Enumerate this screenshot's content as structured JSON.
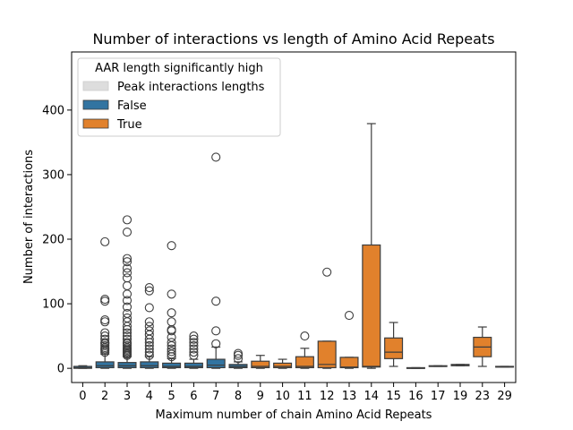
{
  "chart_data": {
    "type": "box",
    "title": "Number of interactions vs length of Amino Acid Repeats",
    "xlabel": "Maximum number of chain Amino Acid Repeats",
    "ylabel": "Number of interactions",
    "ylim": [
      -22,
      490
    ],
    "yticks": [
      0,
      100,
      200,
      300,
      400
    ],
    "legend": {
      "title": "AAR length significantly high",
      "placement": "top-left",
      "entries": [
        {
          "label": "Peak interactions lengths",
          "color": "#dddddd"
        },
        {
          "label": "False",
          "color": "#3274a1"
        },
        {
          "label": "True",
          "color": "#e1812c"
        }
      ]
    },
    "categories": [
      "0",
      "2",
      "3",
      "4",
      "5",
      "6",
      "7",
      "8",
      "9",
      "10",
      "11",
      "12",
      "13",
      "14",
      "15",
      "16",
      "17",
      "19",
      "23",
      "29"
    ],
    "boxes": [
      {
        "x": "0",
        "significant": false,
        "whisker_low": 0,
        "q1": 0,
        "median": 1,
        "q3": 3,
        "whisker_high": 4,
        "outliers": []
      },
      {
        "x": "2",
        "significant": false,
        "whisker_low": 0,
        "q1": 1,
        "median": 4,
        "q3": 10,
        "whisker_high": 22,
        "outliers": [
          25,
          28,
          30,
          32,
          35,
          38,
          40,
          45,
          50,
          55,
          72,
          75,
          104,
          107,
          196
        ]
      },
      {
        "x": "3",
        "significant": false,
        "whisker_low": 0,
        "q1": 1,
        "median": 4,
        "q3": 9,
        "whisker_high": 18,
        "outliers": [
          20,
          22,
          24,
          26,
          28,
          30,
          32,
          35,
          38,
          40,
          45,
          50,
          55,
          60,
          65,
          72,
          78,
          85,
          95,
          105,
          115,
          128,
          140,
          148,
          155,
          165,
          170,
          211,
          230
        ]
      },
      {
        "x": "4",
        "significant": false,
        "whisker_low": 0,
        "q1": 1,
        "median": 4,
        "q3": 10,
        "whisker_high": 18,
        "outliers": [
          20,
          25,
          30,
          35,
          40,
          45,
          52,
          58,
          65,
          72,
          94,
          120,
          125
        ]
      },
      {
        "x": "5",
        "significant": false,
        "whisker_low": 0,
        "q1": 1,
        "median": 3,
        "q3": 8,
        "whisker_high": 15,
        "outliers": [
          18,
          22,
          26,
          30,
          35,
          40,
          48,
          58,
          60,
          72,
          86,
          115,
          190
        ]
      },
      {
        "x": "6",
        "significant": false,
        "whisker_low": 0,
        "q1": 1,
        "median": 3,
        "q3": 8,
        "whisker_high": 14,
        "outliers": [
          20,
          25,
          30,
          35,
          40,
          45,
          50
        ]
      },
      {
        "x": "7",
        "significant": false,
        "whisker_low": 0,
        "q1": 1,
        "median": 5,
        "q3": 14,
        "whisker_high": 33,
        "outliers": [
          38,
          58,
          104,
          327
        ]
      },
      {
        "x": "8",
        "significant": false,
        "whisker_low": 0,
        "q1": 1,
        "median": 3,
        "q3": 6,
        "whisker_high": 10,
        "outliers": [
          15,
          20,
          23
        ]
      },
      {
        "x": "9",
        "significant": true,
        "whisker_low": 0,
        "q1": 1,
        "median": 3,
        "q3": 11,
        "whisker_high": 20,
        "outliers": []
      },
      {
        "x": "10",
        "significant": true,
        "whisker_low": 0,
        "q1": 1,
        "median": 3,
        "q3": 8,
        "whisker_high": 14,
        "outliers": []
      },
      {
        "x": "11",
        "significant": true,
        "whisker_low": 0,
        "q1": 1,
        "median": 3,
        "q3": 18,
        "whisker_high": 31,
        "outliers": [
          50
        ]
      },
      {
        "x": "12",
        "significant": true,
        "whisker_low": 0,
        "q1": 1,
        "median": 6,
        "q3": 42,
        "whisker_high": 42,
        "outliers": [
          149
        ]
      },
      {
        "x": "13",
        "significant": true,
        "whisker_low": 0,
        "q1": 1,
        "median": 2,
        "q3": 17,
        "whisker_high": 17,
        "outliers": [
          82
        ]
      },
      {
        "x": "14",
        "significant": true,
        "whisker_low": 0,
        "q1": 2,
        "median": 3,
        "q3": 191,
        "whisker_high": 379,
        "outliers": []
      },
      {
        "x": "15",
        "significant": true,
        "whisker_low": 3,
        "q1": 15,
        "median": 25,
        "q3": 47,
        "whisker_high": 71,
        "outliers": []
      },
      {
        "x": "16",
        "significant": true,
        "whisker_low": 0,
        "q1": 0,
        "median": 0,
        "q3": 1,
        "whisker_high": 1,
        "outliers": []
      },
      {
        "x": "17",
        "significant": true,
        "whisker_low": 3,
        "q1": 3,
        "median": 3,
        "q3": 4,
        "whisker_high": 4,
        "outliers": []
      },
      {
        "x": "19",
        "significant": true,
        "whisker_low": 4,
        "q1": 4,
        "median": 5,
        "q3": 6,
        "whisker_high": 6,
        "outliers": []
      },
      {
        "x": "23",
        "significant": true,
        "whisker_low": 3,
        "q1": 18,
        "median": 33,
        "q3": 48,
        "whisker_high": 64,
        "outliers": []
      },
      {
        "x": "29",
        "significant": true,
        "whisker_low": 2,
        "q1": 2,
        "median": 2,
        "q3": 3,
        "whisker_high": 3,
        "outliers": []
      }
    ]
  },
  "colors": {
    "false_box": "#3274a1",
    "true_box": "#e1812c",
    "peak": "#dddddd",
    "line": "#3d3d3d"
  }
}
